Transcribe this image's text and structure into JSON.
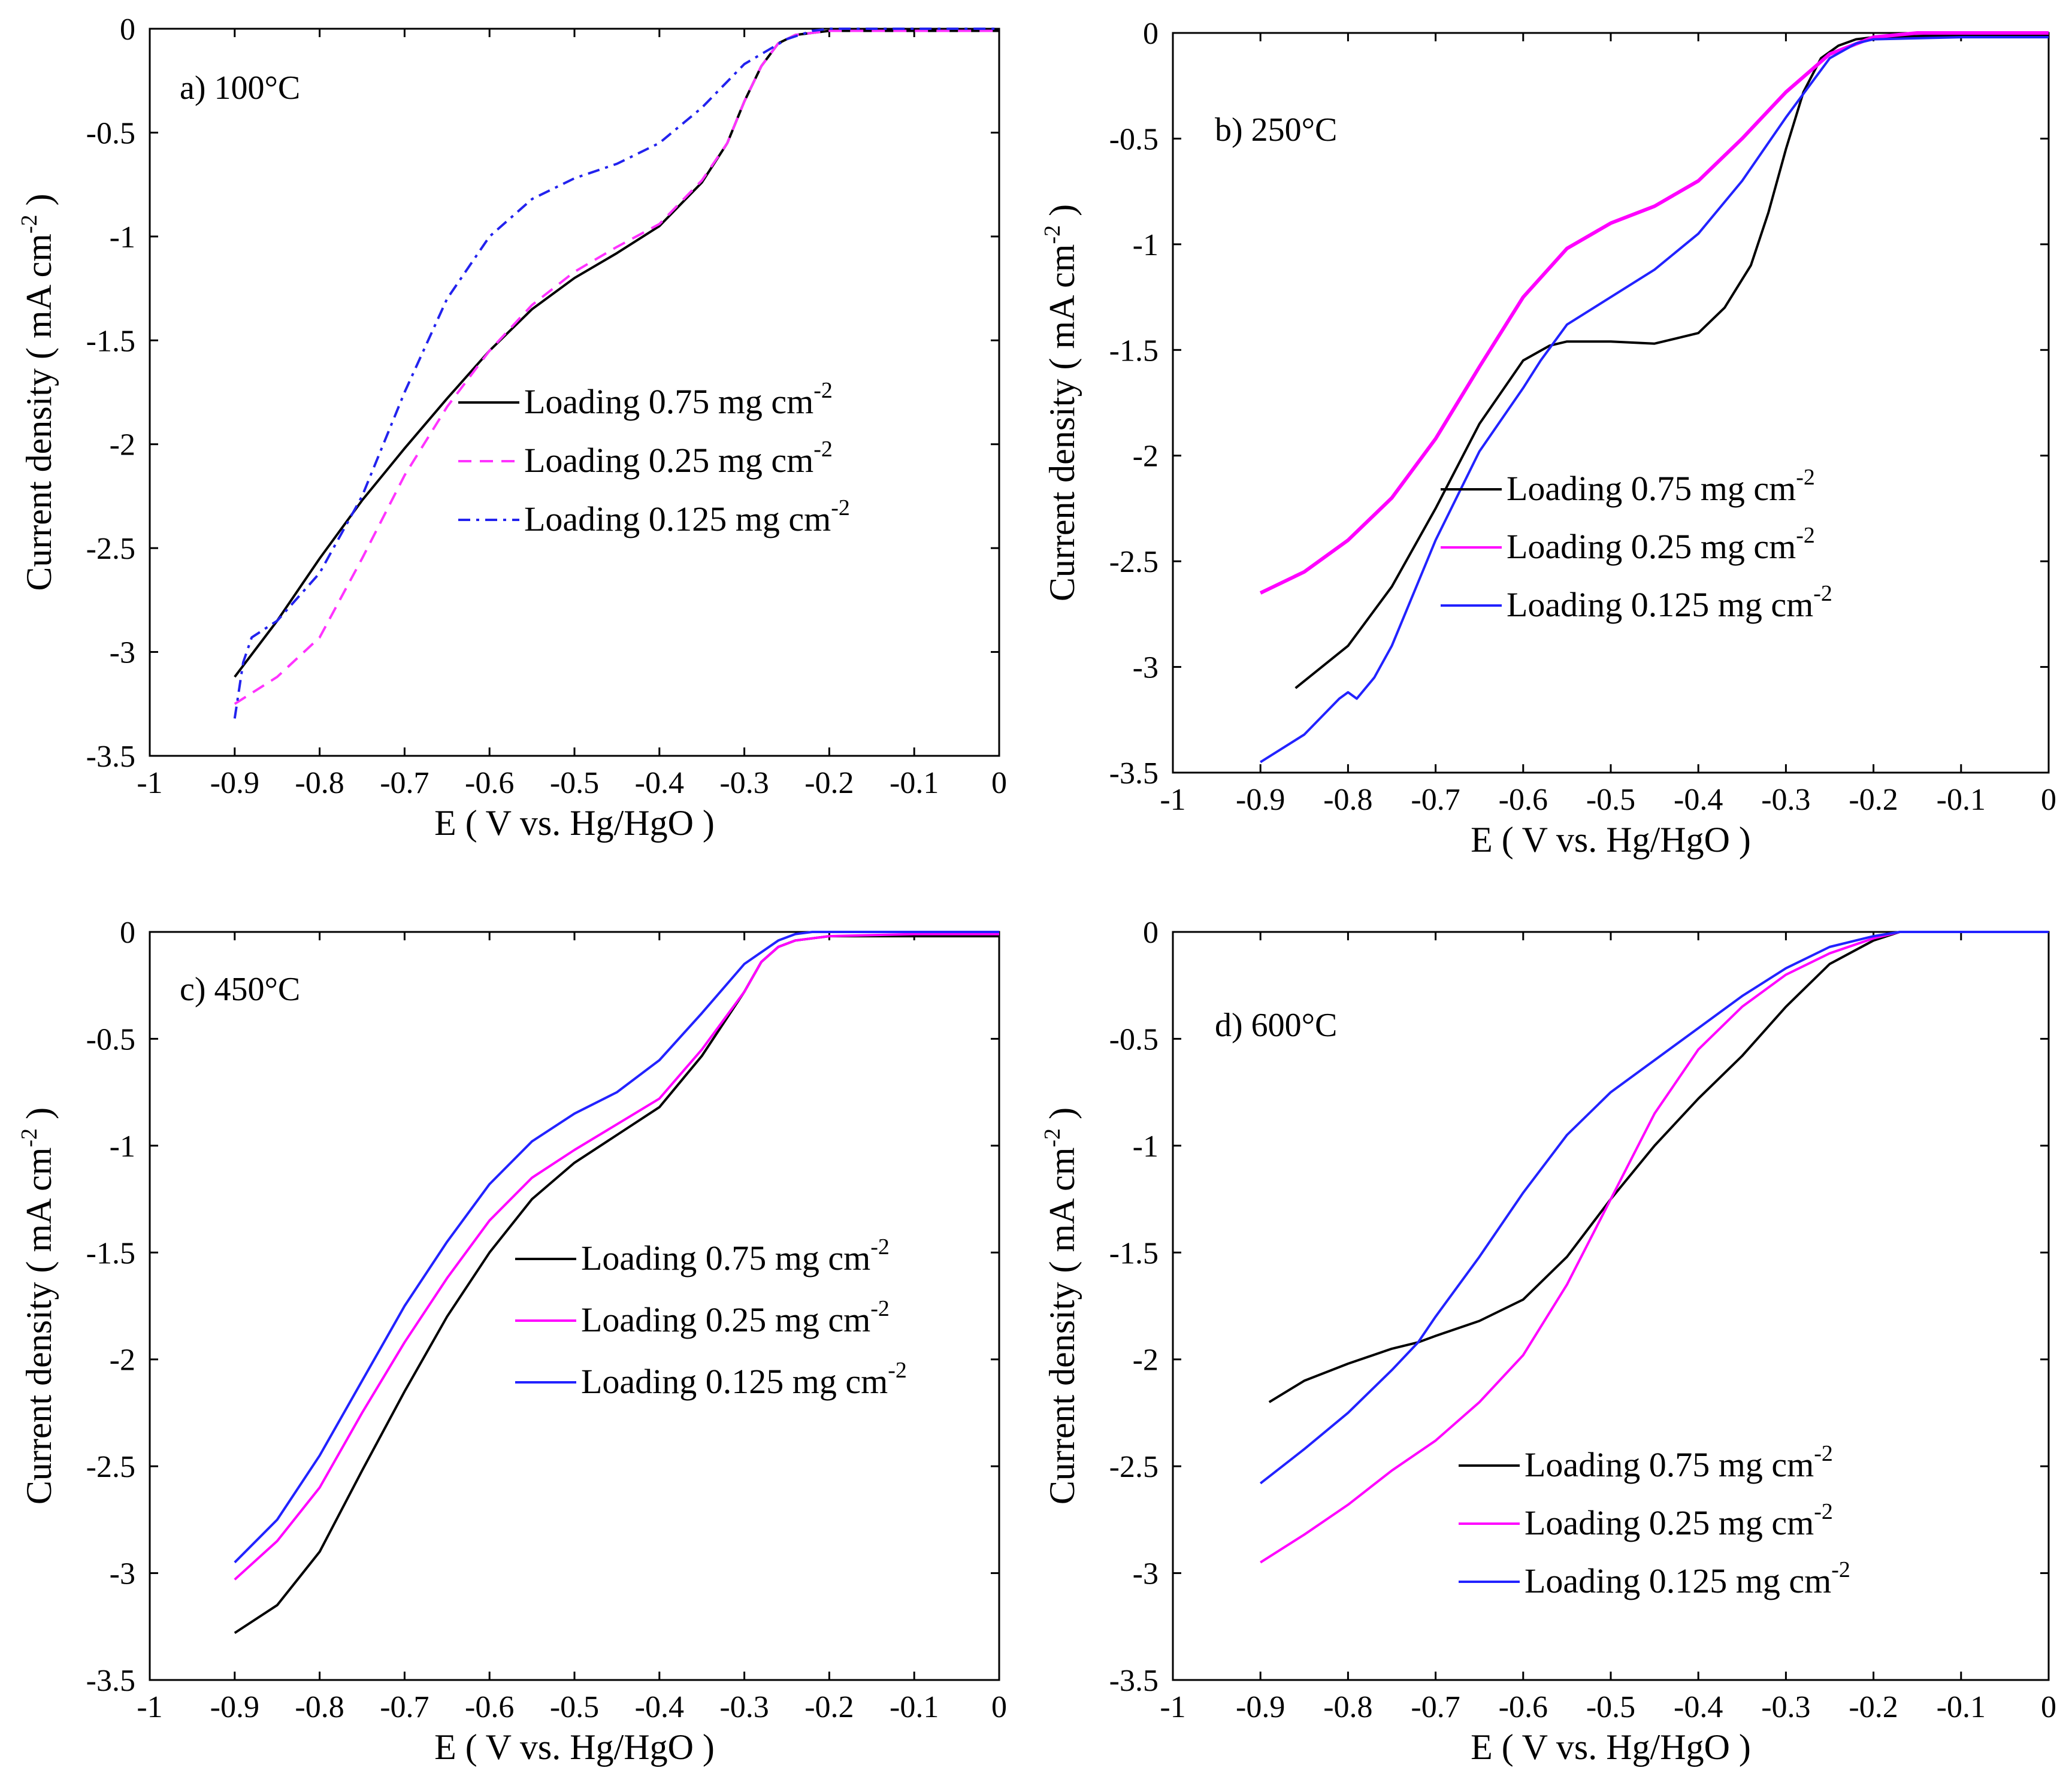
{
  "chart_data": [
    {
      "id": "a",
      "type": "line",
      "panel_label": "a) 100°C",
      "xlabel": "E ( V vs. Hg/HgO )",
      "ylabel": "Current density ( mA cm",
      "ylabel_sup": "-2",
      "ylabel_end": " )",
      "xlim": [
        -1,
        0
      ],
      "ylim": [
        -3.5,
        0
      ],
      "xticks": [
        -1,
        -0.9,
        -0.8,
        -0.7,
        -0.6,
        -0.5,
        -0.4,
        -0.3,
        -0.2,
        -0.1,
        0
      ],
      "xtick_labels": [
        "-1",
        "-0.9",
        "-0.8",
        "-0.7",
        "-0.6",
        "-0.5",
        "-0.4",
        "-0.3",
        "-0.2",
        "-0.1",
        "0"
      ],
      "yticks": [
        0,
        -0.5,
        -1,
        -1.5,
        -2,
        -2.5,
        -3,
        -3.5
      ],
      "ytick_labels": [
        "0",
        "-0.5",
        "-1",
        "-1.5",
        "-2",
        "-2.5",
        "-3",
        "-3.5"
      ],
      "legend_position": "center-right",
      "series": [
        {
          "name": "Loading 0.75 mg cm",
          "sup": "-2",
          "color": "#000000",
          "dash": "solid",
          "x": [
            -0.9,
            -0.85,
            -0.8,
            -0.75,
            -0.7,
            -0.65,
            -0.6,
            -0.55,
            -0.5,
            -0.45,
            -0.4,
            -0.35,
            -0.32,
            -0.3,
            -0.28,
            -0.26,
            -0.24,
            -0.22,
            -0.2,
            -0.1,
            0
          ],
          "y": [
            -3.12,
            -2.85,
            -2.55,
            -2.27,
            -2.02,
            -1.78,
            -1.55,
            -1.35,
            -1.2,
            -1.08,
            -0.95,
            -0.74,
            -0.55,
            -0.35,
            -0.18,
            -0.07,
            -0.03,
            -0.02,
            -0.01,
            -0.01,
            -0.01
          ]
        },
        {
          "name": "Loading 0.25 mg cm",
          "sup": "-2",
          "color": "#ff33ff",
          "dash": "dashed",
          "x": [
            -0.9,
            -0.85,
            -0.8,
            -0.75,
            -0.7,
            -0.65,
            -0.6,
            -0.55,
            -0.5,
            -0.45,
            -0.4,
            -0.35,
            -0.32,
            -0.3,
            -0.28,
            -0.26,
            -0.24,
            -0.22,
            -0.2,
            -0.1,
            0
          ],
          "y": [
            -3.25,
            -3.12,
            -2.93,
            -2.55,
            -2.15,
            -1.82,
            -1.55,
            -1.33,
            -1.17,
            -1.05,
            -0.94,
            -0.73,
            -0.55,
            -0.35,
            -0.18,
            -0.07,
            -0.03,
            -0.02,
            -0.01,
            -0.01,
            -0.01
          ]
        },
        {
          "name": "Loading 0.125 mg cm",
          "sup": "-2",
          "color": "#2222ee",
          "dash": "dashdot",
          "x": [
            -0.9,
            -0.89,
            -0.88,
            -0.85,
            -0.8,
            -0.75,
            -0.7,
            -0.65,
            -0.6,
            -0.55,
            -0.5,
            -0.45,
            -0.4,
            -0.35,
            -0.3,
            -0.25,
            -0.22,
            -0.2,
            -0.1,
            0
          ],
          "y": [
            -3.32,
            -3.05,
            -2.93,
            -2.85,
            -2.62,
            -2.25,
            -1.75,
            -1.3,
            -1.0,
            -0.82,
            -0.72,
            -0.65,
            -0.55,
            -0.38,
            -0.17,
            -0.05,
            -0.01,
            0,
            0,
            0
          ]
        }
      ]
    },
    {
      "id": "b",
      "type": "line",
      "panel_label": "b) 250°C",
      "xlabel": "E ( V vs. Hg/HgO )",
      "ylabel": "Current density ( mA cm",
      "ylabel_sup": "-2",
      "ylabel_end": " )",
      "xlim": [
        -1,
        0
      ],
      "ylim": [
        -3.5,
        0
      ],
      "xticks": [
        -1,
        -0.9,
        -0.8,
        -0.7,
        -0.6,
        -0.5,
        -0.4,
        -0.3,
        -0.2,
        -0.1,
        0
      ],
      "xtick_labels": [
        "-1",
        "-0.9",
        "-0.8",
        "-0.7",
        "-0.6",
        "-0.5",
        "-0.4",
        "-0.3",
        "-0.2",
        "-0.1",
        "0"
      ],
      "yticks": [
        0,
        -0.5,
        -1,
        -1.5,
        -2,
        -2.5,
        -3,
        -3.5
      ],
      "ytick_labels": [
        "0",
        "-0.5",
        "-1",
        "-1.5",
        "-2",
        "-2.5",
        "-3",
        "-3.5"
      ],
      "legend_position": "center-right",
      "series": [
        {
          "name": "Loading 0.75 mg cm",
          "sup": "-2",
          "color": "#000000",
          "dash": "solid",
          "x": [
            -0.86,
            -0.8,
            -0.75,
            -0.7,
            -0.65,
            -0.6,
            -0.57,
            -0.55,
            -0.5,
            -0.45,
            -0.4,
            -0.37,
            -0.34,
            -0.32,
            -0.3,
            -0.28,
            -0.26,
            -0.24,
            -0.22,
            -0.2,
            -0.1,
            0
          ],
          "y": [
            -3.1,
            -2.9,
            -2.62,
            -2.25,
            -1.85,
            -1.55,
            -1.48,
            -1.46,
            -1.46,
            -1.47,
            -1.42,
            -1.3,
            -1.1,
            -0.85,
            -0.55,
            -0.28,
            -0.12,
            -0.06,
            -0.03,
            -0.02,
            -0.01,
            -0.01
          ]
        },
        {
          "name": "Loading 0.25 mg cm",
          "sup": "-2",
          "color": "#ff00ff",
          "dash": "solid",
          "x": [
            -0.9,
            -0.85,
            -0.8,
            -0.75,
            -0.7,
            -0.65,
            -0.6,
            -0.55,
            -0.5,
            -0.45,
            -0.4,
            -0.35,
            -0.3,
            -0.25,
            -0.2,
            -0.15,
            -0.1,
            0
          ],
          "y": [
            -2.65,
            -2.55,
            -2.4,
            -2.2,
            -1.92,
            -1.58,
            -1.25,
            -1.02,
            -0.9,
            -0.82,
            -0.7,
            -0.5,
            -0.28,
            -0.1,
            -0.02,
            0,
            0,
            0
          ]
        },
        {
          "name": "Loading 0.125 mg cm",
          "sup": "-2",
          "color": "#2222ff",
          "dash": "solid",
          "x": [
            -0.9,
            -0.85,
            -0.81,
            -0.8,
            -0.79,
            -0.77,
            -0.75,
            -0.72,
            -0.7,
            -0.65,
            -0.6,
            -0.58,
            -0.55,
            -0.5,
            -0.45,
            -0.4,
            -0.35,
            -0.3,
            -0.25,
            -0.22,
            -0.2,
            -0.1,
            0
          ],
          "y": [
            -3.45,
            -3.32,
            -3.15,
            -3.12,
            -3.15,
            -3.05,
            -2.9,
            -2.6,
            -2.4,
            -1.98,
            -1.68,
            -1.55,
            -1.38,
            -1.25,
            -1.12,
            -0.95,
            -0.7,
            -0.4,
            -0.12,
            -0.05,
            -0.03,
            -0.02,
            -0.02
          ]
        }
      ]
    },
    {
      "id": "c",
      "type": "line",
      "panel_label": "c) 450°C",
      "xlabel": "E ( V vs. Hg/HgO )",
      "ylabel": "Current density ( mA cm",
      "ylabel_sup": "-2",
      "ylabel_end": " )",
      "xlim": [
        -1,
        0
      ],
      "ylim": [
        -3.5,
        0
      ],
      "xticks": [
        -1,
        -0.9,
        -0.8,
        -0.7,
        -0.6,
        -0.5,
        -0.4,
        -0.3,
        -0.2,
        -0.1,
        0
      ],
      "xtick_labels": [
        "-1",
        "-0.9",
        "-0.8",
        "-0.7",
        "-0.6",
        "-0.5",
        "-0.4",
        "-0.3",
        "-0.2",
        "-0.1",
        "0"
      ],
      "yticks": [
        0,
        -0.5,
        -1,
        -1.5,
        -2,
        -2.5,
        -3,
        -3.5
      ],
      "ytick_labels": [
        "0",
        "-0.5",
        "-1",
        "-1.5",
        "-2",
        "-2.5",
        "-3",
        "-3.5"
      ],
      "legend_position": "center-right",
      "series": [
        {
          "name": "Loading 0.75 mg cm",
          "sup": "-2",
          "color": "#000000",
          "dash": "solid",
          "x": [
            -0.9,
            -0.85,
            -0.8,
            -0.75,
            -0.7,
            -0.65,
            -0.6,
            -0.55,
            -0.5,
            -0.45,
            -0.4,
            -0.35,
            -0.3,
            -0.28,
            -0.26,
            -0.24,
            -0.22,
            -0.2,
            -0.1,
            0
          ],
          "y": [
            -3.28,
            -3.15,
            -2.9,
            -2.52,
            -2.15,
            -1.8,
            -1.5,
            -1.25,
            -1.08,
            -0.95,
            -0.82,
            -0.58,
            -0.28,
            -0.14,
            -0.07,
            -0.04,
            -0.03,
            -0.02,
            -0.02,
            -0.02
          ]
        },
        {
          "name": "Loading 0.25 mg cm",
          "sup": "-2",
          "color": "#ff00ff",
          "dash": "solid",
          "x": [
            -0.9,
            -0.85,
            -0.8,
            -0.75,
            -0.7,
            -0.65,
            -0.6,
            -0.55,
            -0.5,
            -0.45,
            -0.4,
            -0.35,
            -0.3,
            -0.28,
            -0.26,
            -0.24,
            -0.22,
            -0.2,
            -0.1,
            0
          ],
          "y": [
            -3.03,
            -2.85,
            -2.6,
            -2.25,
            -1.92,
            -1.62,
            -1.35,
            -1.15,
            -1.02,
            -0.9,
            -0.78,
            -0.55,
            -0.28,
            -0.14,
            -0.07,
            -0.04,
            -0.03,
            -0.02,
            -0.01,
            -0.01
          ]
        },
        {
          "name": "Loading 0.125 mg cm",
          "sup": "-2",
          "color": "#2222ff",
          "dash": "solid",
          "x": [
            -0.9,
            -0.85,
            -0.8,
            -0.75,
            -0.7,
            -0.65,
            -0.6,
            -0.55,
            -0.5,
            -0.45,
            -0.4,
            -0.35,
            -0.3,
            -0.26,
            -0.24,
            -0.22,
            -0.2,
            -0.1,
            0
          ],
          "y": [
            -2.95,
            -2.75,
            -2.45,
            -2.1,
            -1.75,
            -1.45,
            -1.18,
            -0.98,
            -0.85,
            -0.75,
            -0.6,
            -0.38,
            -0.15,
            -0.04,
            -0.01,
            0,
            0,
            0,
            0
          ]
        }
      ]
    },
    {
      "id": "d",
      "type": "line",
      "panel_label": "d) 600°C",
      "xlabel": "E ( V vs. Hg/HgO )",
      "ylabel": "Current density ( mA cm",
      "ylabel_sup": "-2",
      "ylabel_end": " )",
      "xlim": [
        -1,
        0
      ],
      "ylim": [
        -3.5,
        0
      ],
      "xticks": [
        -1,
        -0.9,
        -0.8,
        -0.7,
        -0.6,
        -0.5,
        -0.4,
        -0.3,
        -0.2,
        -0.1,
        0
      ],
      "xtick_labels": [
        "-1",
        "-0.9",
        "-0.8",
        "-0.7",
        "-0.6",
        "-0.5",
        "-0.4",
        "-0.3",
        "-0.2",
        "-0.1",
        "0"
      ],
      "yticks": [
        0,
        -0.5,
        -1,
        -1.5,
        -2,
        -2.5,
        -3,
        -3.5
      ],
      "ytick_labels": [
        "0",
        "-0.5",
        "-1",
        "-1.5",
        "-2",
        "-2.5",
        "-3",
        "-3.5"
      ],
      "legend_position": "bottom-right",
      "series": [
        {
          "name": "Loading 0.75 mg cm",
          "sup": "-2",
          "color": "#000000",
          "dash": "solid",
          "x": [
            -0.89,
            -0.85,
            -0.8,
            -0.75,
            -0.72,
            -0.7,
            -0.65,
            -0.6,
            -0.55,
            -0.5,
            -0.45,
            -0.4,
            -0.35,
            -0.3,
            -0.25,
            -0.2,
            -0.17,
            -0.1,
            0
          ],
          "y": [
            -2.2,
            -2.1,
            -2.02,
            -1.95,
            -1.92,
            -1.89,
            -1.82,
            -1.72,
            -1.52,
            -1.25,
            -1.0,
            -0.78,
            -0.58,
            -0.35,
            -0.15,
            -0.04,
            0,
            0,
            0
          ]
        },
        {
          "name": "Loading 0.25 mg cm",
          "sup": "-2",
          "color": "#ff00ff",
          "dash": "solid",
          "x": [
            -0.9,
            -0.85,
            -0.8,
            -0.75,
            -0.7,
            -0.65,
            -0.6,
            -0.55,
            -0.5,
            -0.45,
            -0.4,
            -0.35,
            -0.3,
            -0.25,
            -0.2,
            -0.17,
            -0.1,
            0
          ],
          "y": [
            -2.95,
            -2.82,
            -2.68,
            -2.52,
            -2.38,
            -2.2,
            -1.98,
            -1.65,
            -1.25,
            -0.85,
            -0.55,
            -0.35,
            -0.2,
            -0.1,
            -0.03,
            0,
            0,
            0
          ]
        },
        {
          "name": "Loading 0.125 mg cm",
          "sup": "-2",
          "color": "#2222ff",
          "dash": "solid",
          "x": [
            -0.9,
            -0.85,
            -0.8,
            -0.75,
            -0.72,
            -0.7,
            -0.65,
            -0.6,
            -0.55,
            -0.5,
            -0.45,
            -0.4,
            -0.35,
            -0.3,
            -0.25,
            -0.2,
            -0.17,
            -0.1,
            0
          ],
          "y": [
            -2.58,
            -2.42,
            -2.25,
            -2.05,
            -1.92,
            -1.8,
            -1.52,
            -1.22,
            -0.95,
            -0.75,
            -0.6,
            -0.45,
            -0.3,
            -0.17,
            -0.07,
            -0.02,
            0,
            0,
            0
          ]
        }
      ]
    }
  ]
}
